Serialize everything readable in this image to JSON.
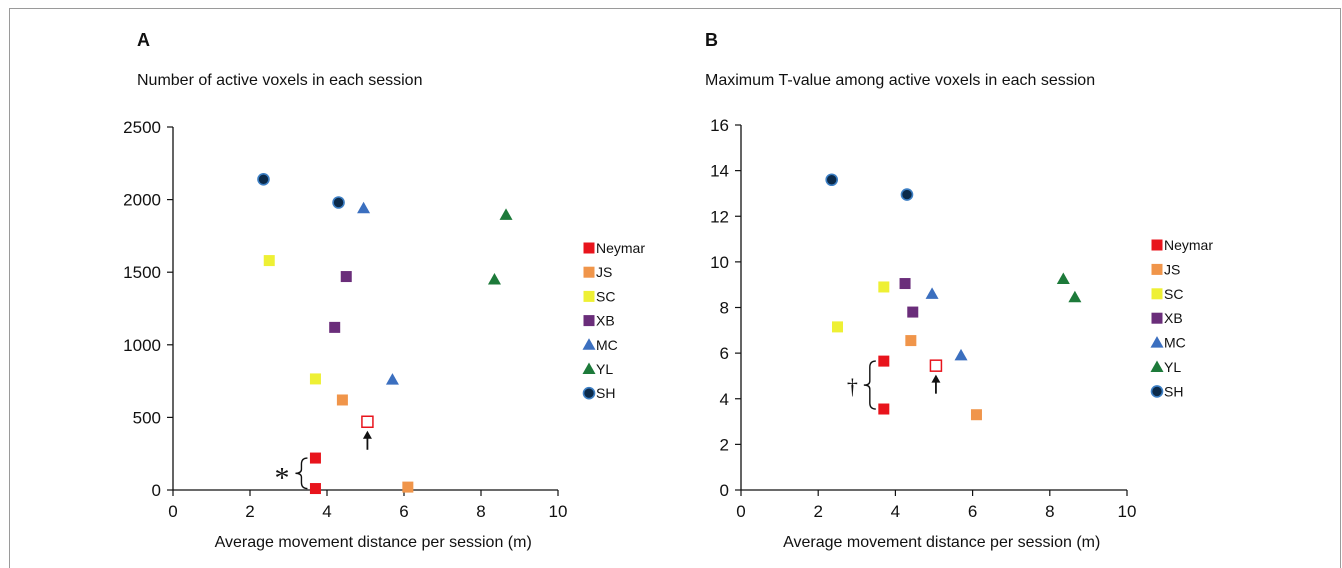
{
  "panels": [
    {
      "letter": "A",
      "title": "Number of active voxels in each session"
    },
    {
      "letter": "B",
      "title": "Maximum T-value among active voxels in each session"
    }
  ],
  "colors": {
    "Neymar": "#e8141c",
    "JS": "#f0954a",
    "SC": "#eef034",
    "XB": "#6a2d7a",
    "MC": "#3b6fbf",
    "YL": "#1d7a3a",
    "SH": "#0b2a4a",
    "SH_ring": "#3d7fc4",
    "highlight": "#e8141c"
  },
  "chart_data": [
    {
      "type": "scatter",
      "xlabel": "Average movement distance per session (m)",
      "ylabel": "",
      "xlim": [
        0,
        10
      ],
      "ylim": [
        0,
        2500
      ],
      "xticks": [
        "0",
        "2",
        "4",
        "6",
        "8",
        "10"
      ],
      "yticks": [
        "0",
        "500",
        "1000",
        "1500",
        "2000",
        "2500"
      ],
      "legend": "right",
      "series": [
        {
          "name": "Neymar",
          "marker": "square",
          "points": [
            [
              3.7,
              220
            ],
            [
              3.7,
              10
            ]
          ]
        },
        {
          "name": "JS",
          "marker": "square",
          "points": [
            [
              4.4,
              620
            ],
            [
              6.1,
              20
            ]
          ]
        },
        {
          "name": "SC",
          "marker": "square",
          "points": [
            [
              2.5,
              1580
            ],
            [
              3.7,
              765
            ]
          ]
        },
        {
          "name": "XB",
          "marker": "square",
          "points": [
            [
              4.5,
              1470
            ],
            [
              4.2,
              1120
            ]
          ]
        },
        {
          "name": "MC",
          "marker": "triangle",
          "points": [
            [
              4.95,
              1940
            ],
            [
              5.7,
              760
            ]
          ]
        },
        {
          "name": "YL",
          "marker": "triangle",
          "points": [
            [
              8.65,
              1895
            ],
            [
              8.35,
              1450
            ]
          ]
        },
        {
          "name": "SH",
          "marker": "circle",
          "points": [
            [
              2.35,
              2140
            ],
            [
              4.3,
              1980
            ]
          ]
        }
      ],
      "open_marker": {
        "x": 5.05,
        "y": 470
      },
      "annotation": {
        "symbol": "*"
      }
    },
    {
      "type": "scatter",
      "xlabel": "Average movement distance per session (m)",
      "ylabel": "",
      "xlim": [
        0,
        10
      ],
      "ylim": [
        0,
        16
      ],
      "xticks": [
        "0",
        "2",
        "4",
        "6",
        "8",
        "10"
      ],
      "yticks": [
        "0",
        "2",
        "4",
        "6",
        "8",
        "10",
        "12",
        "14",
        "16"
      ],
      "legend": "right",
      "series": [
        {
          "name": "Neymar",
          "marker": "square",
          "points": [
            [
              3.7,
              5.65
            ],
            [
              3.7,
              3.55
            ]
          ]
        },
        {
          "name": "JS",
          "marker": "square",
          "points": [
            [
              4.4,
              6.55
            ],
            [
              6.1,
              3.3
            ]
          ]
        },
        {
          "name": "SC",
          "marker": "square",
          "points": [
            [
              3.7,
              8.9
            ],
            [
              2.5,
              7.15
            ]
          ]
        },
        {
          "name": "XB",
          "marker": "square",
          "points": [
            [
              4.25,
              9.05
            ],
            [
              4.45,
              7.8
            ]
          ]
        },
        {
          "name": "MC",
          "marker": "triangle",
          "points": [
            [
              4.95,
              8.6
            ],
            [
              5.7,
              5.9
            ]
          ]
        },
        {
          "name": "YL",
          "marker": "triangle",
          "points": [
            [
              8.35,
              9.25
            ],
            [
              8.65,
              8.45
            ]
          ]
        },
        {
          "name": "SH",
          "marker": "circle",
          "points": [
            [
              2.35,
              13.6
            ],
            [
              4.3,
              12.95
            ]
          ]
        }
      ],
      "open_marker": {
        "x": 5.05,
        "y": 5.45
      },
      "annotation": {
        "symbol": "†"
      }
    }
  ]
}
